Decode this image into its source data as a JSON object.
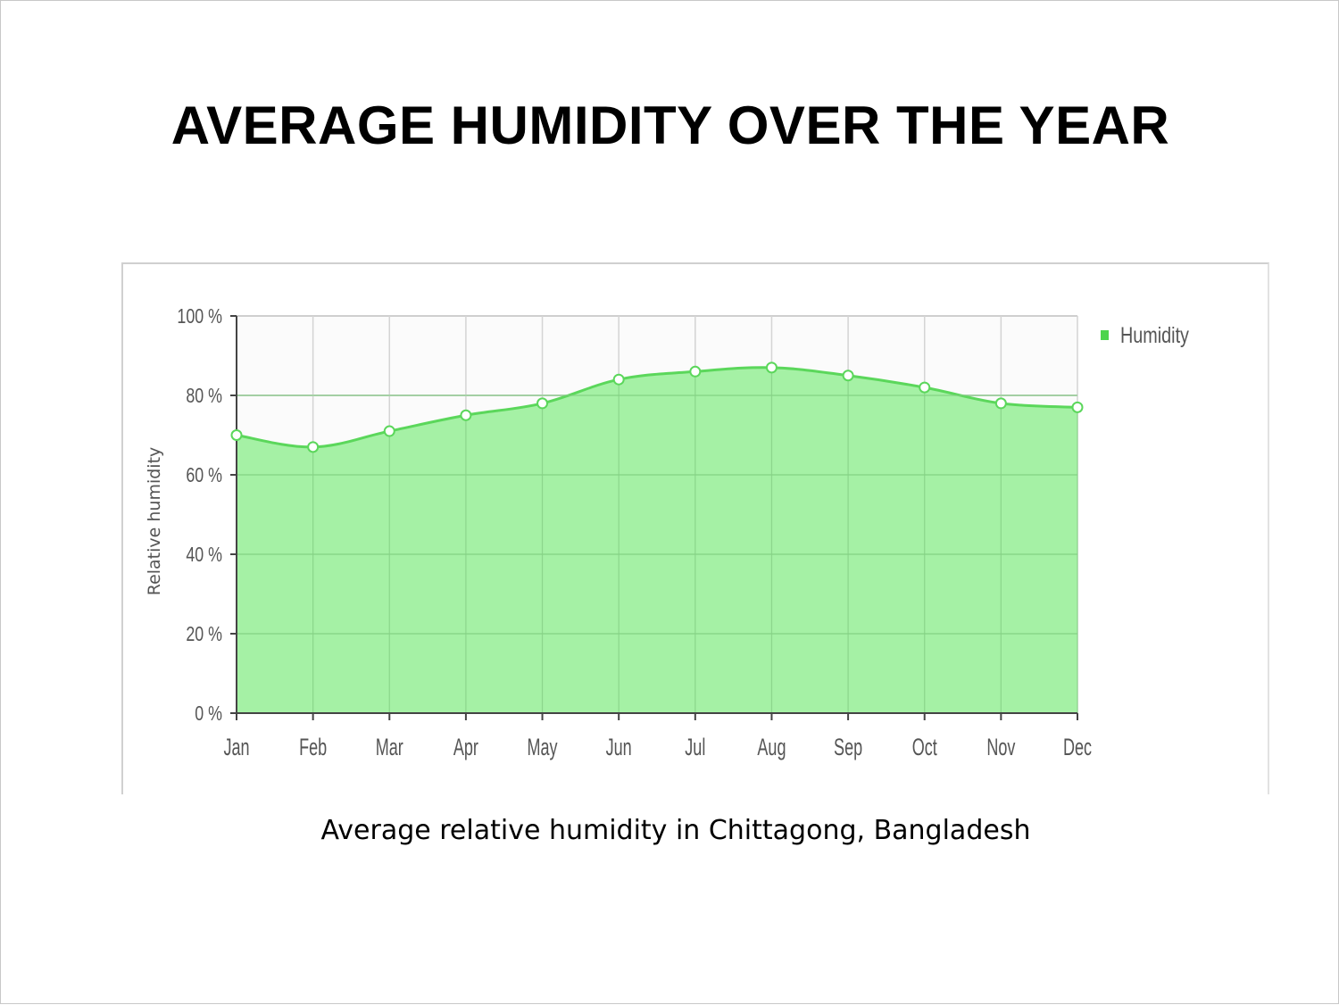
{
  "slide": {
    "title": "AVERAGE HUMIDITY OVER THE YEAR",
    "caption": "Average relative humidity in Chittagong, Bangladesh"
  },
  "chart_data": {
    "type": "area",
    "categories": [
      "Jan",
      "Feb",
      "Mar",
      "Apr",
      "May",
      "Jun",
      "Jul",
      "Aug",
      "Sep",
      "Oct",
      "Nov",
      "Dec"
    ],
    "series": [
      {
        "name": "Humidity",
        "values": [
          70,
          67,
          71,
          75,
          78,
          84,
          86,
          87,
          85,
          82,
          78,
          77
        ]
      }
    ],
    "ylabel": "Relative humidity",
    "ylim": [
      0,
      100
    ],
    "yticks": [
      0,
      20,
      40,
      60,
      80,
      100
    ],
    "ytick_labels": [
      "0 %",
      "20 %",
      "40 %",
      "60 %",
      "80 %",
      "100 %"
    ],
    "grid": true,
    "legend_position": "top-right",
    "colors": {
      "fill": "#a0f0a0",
      "line": "#5bd75b",
      "legend": "#4cd44c"
    }
  }
}
